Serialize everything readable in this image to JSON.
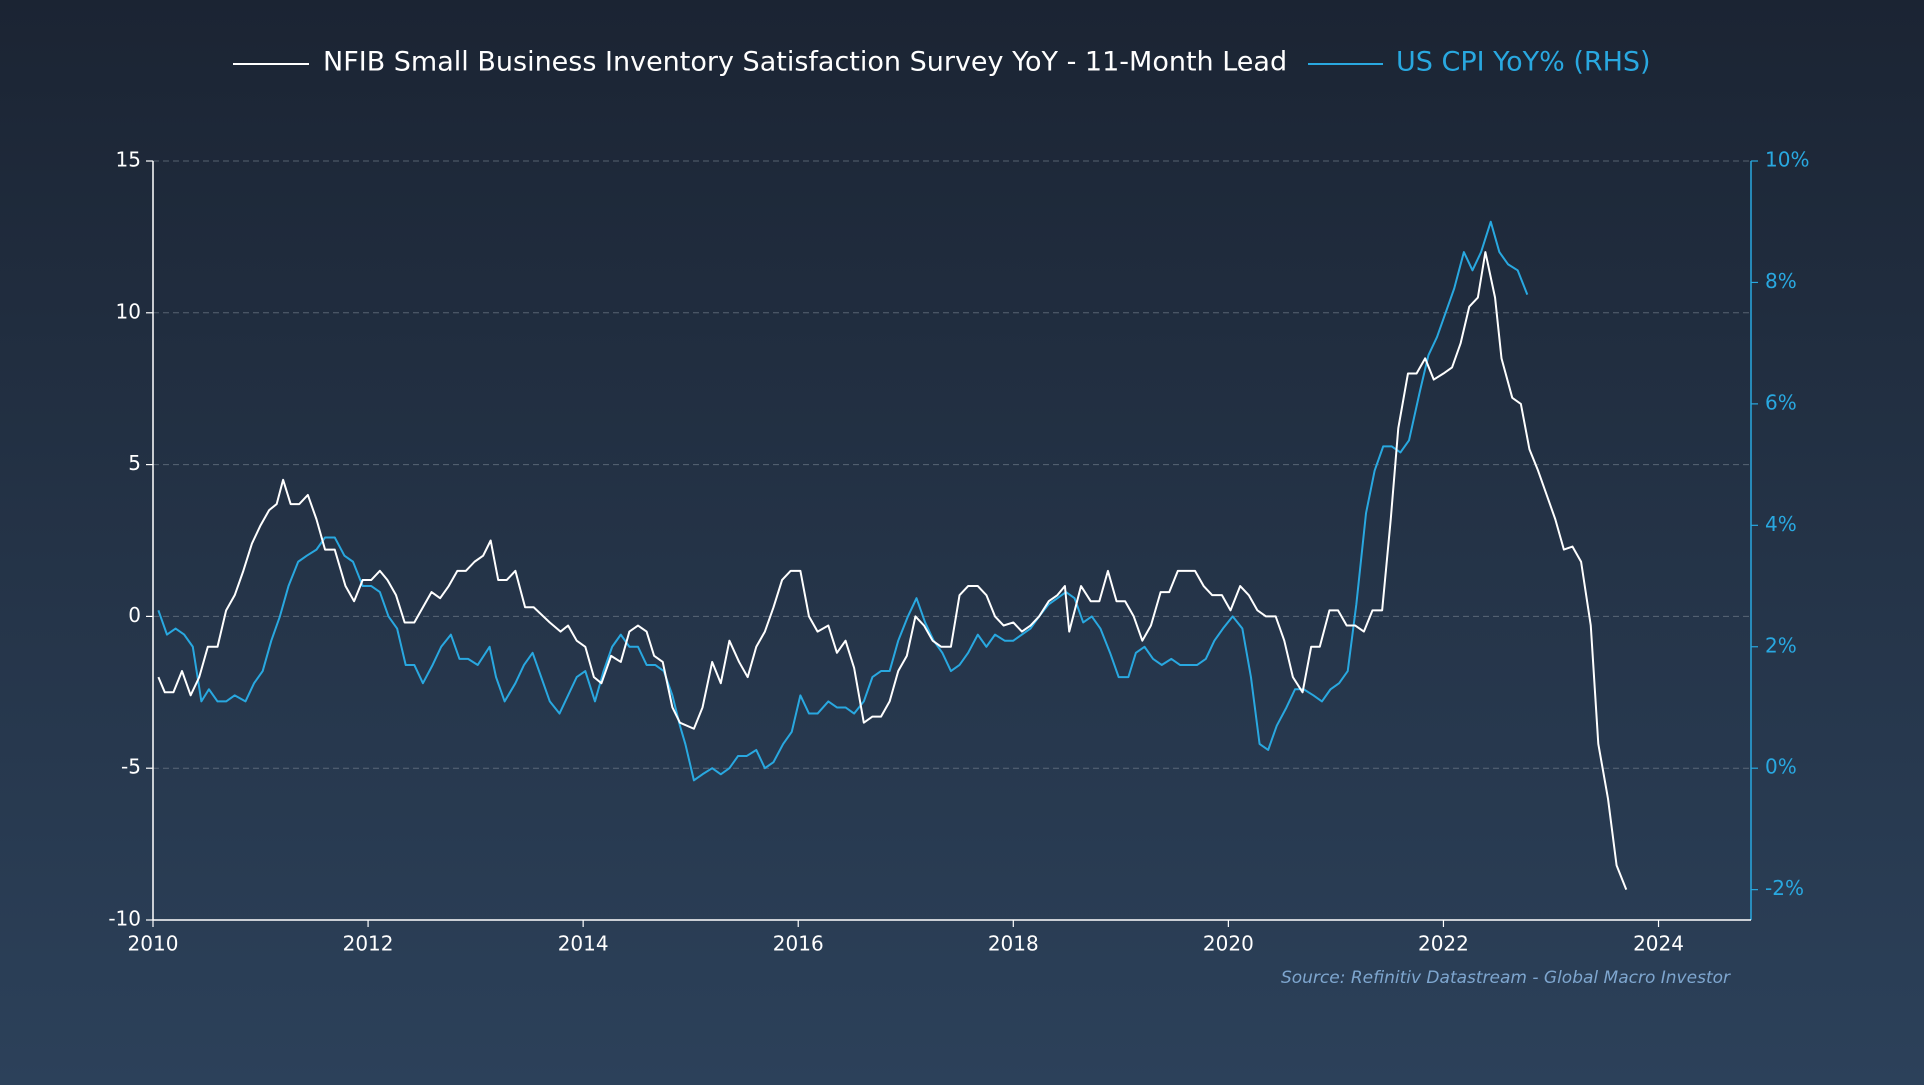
{
  "chart_data": {
    "type": "line",
    "legend": "top",
    "grid": true,
    "source": "Source: Refinitiv Datastream - Global Macro Investor",
    "xlim": [
      2010,
      2024.86
    ],
    "xticks": [
      2010,
      2012,
      2014,
      2016,
      2018,
      2020,
      2022,
      2024
    ],
    "ylim": [
      -10,
      15
    ],
    "yticks": [
      -10,
      -5,
      0,
      5,
      10,
      15
    ],
    "y2lim": [
      -2.5,
      10
    ],
    "y2ticks": [
      {
        "value": -2,
        "label": "-2%"
      },
      {
        "value": 0,
        "label": "0%"
      },
      {
        "value": 2,
        "label": "2%"
      },
      {
        "value": 4,
        "label": "4%"
      },
      {
        "value": 6,
        "label": "6%"
      },
      {
        "value": 8,
        "label": "8%"
      },
      {
        "value": 10,
        "label": "10%"
      }
    ],
    "series": [
      {
        "name": "NFIB Small Business Inventory Satisfaction Survey YoY - 11-Month Lead",
        "color": "#ffffff",
        "axis": "y",
        "x": [
          2010.05,
          2010.11,
          2010.19,
          2010.27,
          2010.35,
          2010.43,
          2010.51,
          2010.6,
          2010.68,
          2010.76,
          2010.84,
          2010.92,
          2011.0,
          2011.08,
          2011.15,
          2011.21,
          2011.28,
          2011.36,
          2011.44,
          2011.52,
          2011.6,
          2011.69,
          2011.79,
          2011.87,
          2011.95,
          2012.03,
          2012.11,
          2012.18,
          2012.26,
          2012.34,
          2012.43,
          2012.51,
          2012.59,
          2012.67,
          2012.75,
          2012.83,
          2012.91,
          2012.99,
          2013.07,
          2013.14,
          2013.21,
          2013.29,
          2013.37,
          2013.46,
          2013.54,
          2013.69,
          2013.79,
          2013.86,
          2013.94,
          2014.02,
          2014.1,
          2014.17,
          2014.26,
          2014.35,
          2014.43,
          2014.51,
          2014.59,
          2014.66,
          2014.74,
          2014.83,
          2014.9,
          2015.03,
          2015.11,
          2015.2,
          2015.28,
          2015.36,
          2015.45,
          2015.53,
          2015.61,
          2015.69,
          2015.77,
          2015.85,
          2015.93,
          2016.02,
          2016.1,
          2016.18,
          2016.28,
          2016.36,
          2016.44,
          2016.52,
          2016.61,
          2016.69,
          2016.77,
          2016.85,
          2016.93,
          2017.01,
          2017.09,
          2017.17,
          2017.25,
          2017.33,
          2017.42,
          2017.5,
          2017.58,
          2017.67,
          2017.75,
          2017.83,
          2017.91,
          2018.0,
          2018.08,
          2018.16,
          2018.24,
          2018.33,
          2018.41,
          2018.48,
          2018.52,
          2018.63,
          2018.72,
          2018.8,
          2018.88,
          2018.96,
          2019.04,
          2019.12,
          2019.2,
          2019.28,
          2019.37,
          2019.45,
          2019.53,
          2019.69,
          2019.77,
          2019.85,
          2019.94,
          2020.02,
          2020.11,
          2020.19,
          2020.27,
          2020.35,
          2020.44,
          2020.52,
          2020.6,
          2020.69,
          2020.77,
          2020.85,
          2020.94,
          2021.02,
          2021.1,
          2021.18,
          2021.26,
          2021.34,
          2021.43,
          2021.51,
          2021.58,
          2021.67,
          2021.75,
          2021.83,
          2021.91,
          2022.0,
          2022.08,
          2022.16,
          2022.24,
          2022.32,
          2022.39,
          2022.48,
          2022.54,
          2022.64,
          2022.72,
          2022.8,
          2022.88,
          2022.96,
          2023.04,
          2023.12,
          2023.2,
          2023.28,
          2023.37,
          2023.44,
          2023.53,
          2023.61,
          2023.7
        ],
        "values": [
          -2.0,
          -2.5,
          -2.5,
          -1.8,
          -2.6,
          -2.0,
          -1.0,
          -1.0,
          0.2,
          0.7,
          1.5,
          2.4,
          3.0,
          3.5,
          3.7,
          4.5,
          3.7,
          3.7,
          4.0,
          3.2,
          2.2,
          2.2,
          1.0,
          0.5,
          1.2,
          1.2,
          1.5,
          1.2,
          0.7,
          -0.2,
          -0.2,
          0.3,
          0.8,
          0.6,
          1.0,
          1.5,
          1.5,
          1.8,
          2.0,
          2.5,
          1.2,
          1.2,
          1.5,
          0.3,
          0.3,
          -0.2,
          -0.5,
          -0.3,
          -0.8,
          -1.0,
          -2.0,
          -2.2,
          -1.3,
          -1.5,
          -0.5,
          -0.3,
          -0.5,
          -1.3,
          -1.5,
          -3.0,
          -3.5,
          -3.7,
          -3.0,
          -1.5,
          -2.2,
          -0.8,
          -1.5,
          -2.0,
          -1.0,
          -0.5,
          0.3,
          1.2,
          1.5,
          1.5,
          0.0,
          -0.5,
          -0.3,
          -1.2,
          -0.8,
          -1.7,
          -3.5,
          -3.3,
          -3.3,
          -2.8,
          -1.8,
          -1.3,
          0.0,
          -0.3,
          -0.8,
          -1.0,
          -1.0,
          0.7,
          1.0,
          1.0,
          0.7,
          0.0,
          -0.3,
          -0.2,
          -0.5,
          -0.3,
          0.0,
          0.5,
          0.7,
          1.0,
          -0.5,
          1.0,
          0.5,
          0.5,
          1.5,
          0.5,
          0.5,
          0.0,
          -0.8,
          -0.3,
          0.8,
          0.8,
          1.5,
          1.5,
          1.0,
          0.7,
          0.7,
          0.2,
          1.0,
          0.7,
          0.2,
          0.0,
          0.0,
          -0.8,
          -2.0,
          -2.5,
          -1.0,
          -1.0,
          0.2,
          0.2,
          -0.3,
          -0.3,
          -0.5,
          0.2,
          0.2,
          3.2,
          6.2,
          8.0,
          8.0,
          8.5,
          7.8,
          8.0,
          8.2,
          9.0,
          10.2,
          10.5,
          12.0,
          10.5,
          8.5,
          7.2,
          7.0,
          5.5,
          4.8,
          4.0,
          3.2,
          2.2,
          2.3,
          1.8,
          -0.3,
          -4.2,
          -6.0,
          -8.2,
          -9.0
        ]
      },
      {
        "name": "US CPI YoY% (RHS)",
        "color": "#29a8e0",
        "axis": "y2",
        "x": [
          2010.05,
          2010.13,
          2010.21,
          2010.29,
          2010.37,
          2010.45,
          2010.52,
          2010.6,
          2010.68,
          2010.76,
          2010.86,
          2010.94,
          2011.02,
          2011.1,
          2011.18,
          2011.26,
          2011.35,
          2011.43,
          2011.52,
          2011.6,
          2011.69,
          2011.78,
          2011.86,
          2011.95,
          2012.03,
          2012.11,
          2012.19,
          2012.27,
          2012.35,
          2012.43,
          2012.51,
          2012.6,
          2012.68,
          2012.77,
          2012.85,
          2012.93,
          2013.02,
          2013.13,
          2013.19,
          2013.27,
          2013.37,
          2013.45,
          2013.53,
          2013.61,
          2013.69,
          2013.78,
          2013.86,
          2013.94,
          2014.02,
          2014.11,
          2014.19,
          2014.27,
          2014.35,
          2014.43,
          2014.51,
          2014.59,
          2014.67,
          2014.75,
          2014.83,
          2014.9,
          2014.95,
          2015.03,
          2015.11,
          2015.2,
          2015.28,
          2015.36,
          2015.44,
          2015.52,
          2015.61,
          2015.69,
          2015.77,
          2015.86,
          2015.94,
          2016.02,
          2016.1,
          2016.18,
          2016.28,
          2016.36,
          2016.44,
          2016.52,
          2016.61,
          2016.69,
          2016.77,
          2016.85,
          2016.93,
          2017.02,
          2017.1,
          2017.18,
          2017.26,
          2017.34,
          2017.42,
          2017.5,
          2017.58,
          2017.67,
          2017.75,
          2017.83,
          2017.92,
          2018.0,
          2018.08,
          2018.16,
          2018.24,
          2018.33,
          2018.41,
          2018.49,
          2018.57,
          2018.65,
          2018.73,
          2018.81,
          2018.9,
          2018.98,
          2019.07,
          2019.14,
          2019.22,
          2019.3,
          2019.38,
          2019.47,
          2019.55,
          2019.63,
          2019.71,
          2019.79,
          2019.87,
          2019.95,
          2020.04,
          2020.13,
          2020.21,
          2020.29,
          2020.37,
          2020.45,
          2020.54,
          2020.62,
          2020.7,
          2020.79,
          2020.87,
          2020.95,
          2021.03,
          2021.11,
          2021.19,
          2021.28,
          2021.36,
          2021.44,
          2021.52,
          2021.6,
          2021.68,
          2021.78,
          2021.86,
          2021.94,
          2022.02,
          2022.1,
          2022.19,
          2022.27,
          2022.35,
          2022.44,
          2022.52,
          2022.6,
          2022.69,
          2022.78
        ],
        "values": [
          2.6,
          2.2,
          2.3,
          2.2,
          2.0,
          1.1,
          1.3,
          1.1,
          1.1,
          1.2,
          1.1,
          1.4,
          1.6,
          2.1,
          2.5,
          3.0,
          3.4,
          3.5,
          3.6,
          3.8,
          3.8,
          3.5,
          3.4,
          3.0,
          3.0,
          2.9,
          2.5,
          2.3,
          1.7,
          1.7,
          1.4,
          1.7,
          2.0,
          2.2,
          1.8,
          1.8,
          1.7,
          2.0,
          1.5,
          1.1,
          1.4,
          1.7,
          1.9,
          1.5,
          1.1,
          0.9,
          1.2,
          1.5,
          1.6,
          1.1,
          1.6,
          2.0,
          2.2,
          2.0,
          2.0,
          1.7,
          1.7,
          1.6,
          1.2,
          0.7,
          0.4,
          -0.2,
          -0.1,
          0.0,
          -0.1,
          0.0,
          0.2,
          0.2,
          0.3,
          0.0,
          0.1,
          0.4,
          0.6,
          1.2,
          0.9,
          0.9,
          1.1,
          1.0,
          1.0,
          0.9,
          1.1,
          1.5,
          1.6,
          1.6,
          2.1,
          2.5,
          2.8,
          2.4,
          2.1,
          1.9,
          1.6,
          1.7,
          1.9,
          2.2,
          2.0,
          2.2,
          2.1,
          2.1,
          2.2,
          2.3,
          2.5,
          2.7,
          2.8,
          2.9,
          2.8,
          2.4,
          2.5,
          2.3,
          1.9,
          1.5,
          1.5,
          1.9,
          2.0,
          1.8,
          1.7,
          1.8,
          1.7,
          1.7,
          1.7,
          1.8,
          2.1,
          2.3,
          2.5,
          2.3,
          1.5,
          0.4,
          0.3,
          0.7,
          1.0,
          1.3,
          1.3,
          1.2,
          1.1,
          1.3,
          1.4,
          1.6,
          2.7,
          4.2,
          4.9,
          5.3,
          5.3,
          5.2,
          5.4,
          6.2,
          6.8,
          7.1,
          7.5,
          7.9,
          8.5,
          8.2,
          8.5,
          9.0,
          8.5,
          8.3,
          8.2,
          7.8
        ]
      }
    ]
  }
}
